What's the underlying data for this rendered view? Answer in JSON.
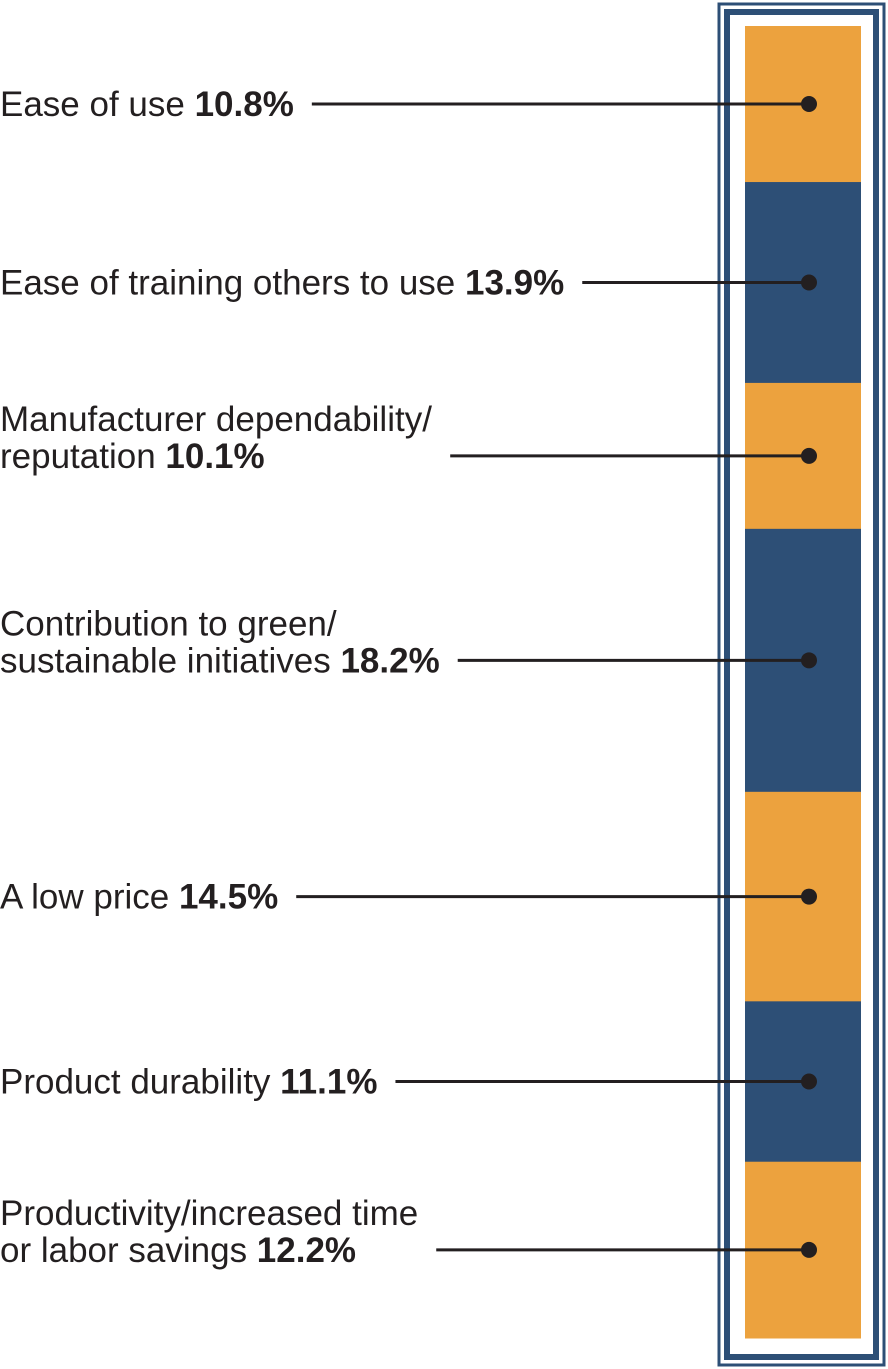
{
  "chart_data": {
    "type": "stacked-bar",
    "orientation": "vertical",
    "title": "",
    "series": [
      {
        "label_lines": [
          "Ease of use"
        ],
        "value_text": "10.8%",
        "value": 10.8,
        "color": "#eca23e"
      },
      {
        "label_lines": [
          "Ease of training others to use"
        ],
        "value_text": "13.9%",
        "value": 13.9,
        "color": "#2d4f76"
      },
      {
        "label_lines": [
          "Manufacturer dependability/",
          "reputation"
        ],
        "value_text": "10.1%",
        "value": 10.1,
        "color": "#eca23e"
      },
      {
        "label_lines": [
          "Contribution to green/",
          "sustainable initiatives"
        ],
        "value_text": "18.2%",
        "value": 18.2,
        "color": "#2d4f76"
      },
      {
        "label_lines": [
          "A low price"
        ],
        "value_text": "14.5%",
        "value": 14.5,
        "color": "#eca23e"
      },
      {
        "label_lines": [
          "Product durability"
        ],
        "value_text": "11.1%",
        "value": 11.1,
        "color": "#2d4f76"
      },
      {
        "label_lines": [
          "Productivity/increased time",
          "or labor savings"
        ],
        "value_text": "12.2%",
        "value": 12.2,
        "color": "#eca23e"
      }
    ],
    "frame_color": "#2d4f76",
    "leader_color": "#231f20"
  }
}
